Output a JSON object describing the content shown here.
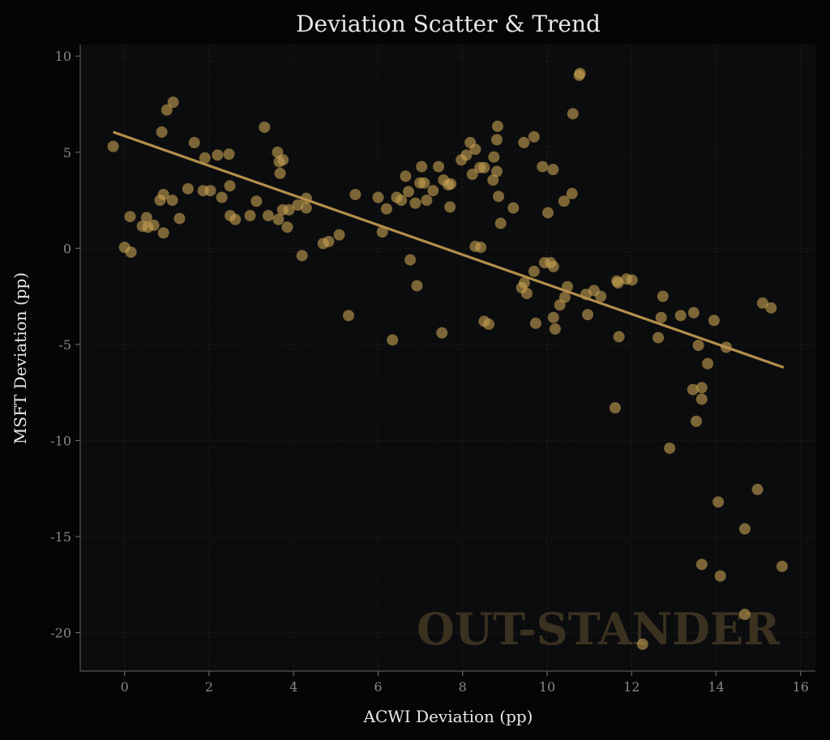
{
  "chart_data": {
    "type": "scatter",
    "title": "Deviation Scatter & Trend",
    "xlabel": "ACWI Deviation (pp)",
    "ylabel": "MSFT Deviation (pp)",
    "xlim": [
      -1.05,
      16.35
    ],
    "ylim": [
      -22.0,
      10.6
    ],
    "xticks": [
      0,
      2,
      4,
      6,
      8,
      10,
      12,
      14,
      16
    ],
    "yticks": [
      10,
      5,
      0,
      -5,
      -10,
      -15,
      -20
    ],
    "ytick_labels": [
      "10",
      "5",
      "0",
      "-5",
      "-10",
      "-15",
      "-20"
    ],
    "grid": true,
    "watermark": "OUT-STANDER",
    "colors": {
      "points": "#c8a152",
      "trend": "#b38f4c",
      "background": "#0b0c0e",
      "watermark": "#3b3120"
    },
    "trend": {
      "x": [
        -0.27,
        15.6
      ],
      "y": [
        6.05,
        -6.2
      ]
    },
    "points": [
      [
        -0.27,
        5.3
      ],
      [
        0,
        0.05
      ],
      [
        0.13,
        1.65
      ],
      [
        0.15,
        -0.2
      ],
      [
        0.42,
        1.15
      ],
      [
        0.52,
        1.6
      ],
      [
        0.55,
        1.1
      ],
      [
        0.69,
        1.2
      ],
      [
        0.84,
        2.5
      ],
      [
        0.88,
        6.05
      ],
      [
        0.92,
        2.8
      ],
      [
        0.92,
        0.8
      ],
      [
        1.0,
        7.2
      ],
      [
        1.13,
        2.5
      ],
      [
        1.15,
        7.6
      ],
      [
        1.3,
        1.55
      ],
      [
        1.5,
        3.1
      ],
      [
        1.65,
        5.5
      ],
      [
        1.86,
        3.0
      ],
      [
        1.9,
        4.7
      ],
      [
        2.03,
        3.0
      ],
      [
        2.2,
        4.85
      ],
      [
        2.3,
        2.65
      ],
      [
        2.47,
        4.9
      ],
      [
        2.49,
        3.25
      ],
      [
        2.5,
        1.7
      ],
      [
        2.62,
        1.5
      ],
      [
        2.97,
        1.7
      ],
      [
        3.12,
        2.45
      ],
      [
        3.31,
        6.3
      ],
      [
        3.4,
        1.7
      ],
      [
        3.62,
        5.0
      ],
      [
        3.64,
        1.5
      ],
      [
        3.66,
        4.5
      ],
      [
        3.68,
        3.9
      ],
      [
        3.75,
        4.6
      ],
      [
        3.74,
        2.0
      ],
      [
        3.85,
        1.1
      ],
      [
        3.89,
        2.0
      ],
      [
        4.1,
        2.25
      ],
      [
        4.2,
        -0.38
      ],
      [
        4.3,
        2.6
      ],
      [
        4.3,
        2.1
      ],
      [
        4.7,
        0.25
      ],
      [
        4.83,
        0.35
      ],
      [
        5.08,
        0.7
      ],
      [
        5.3,
        -3.5
      ],
      [
        5.46,
        2.8
      ],
      [
        6.0,
        2.65
      ],
      [
        6.1,
        0.85
      ],
      [
        6.2,
        2.05
      ],
      [
        6.34,
        -4.77
      ],
      [
        6.44,
        2.65
      ],
      [
        6.55,
        2.5
      ],
      [
        6.65,
        3.75
      ],
      [
        6.72,
        2.95
      ],
      [
        6.76,
        -0.6
      ],
      [
        6.88,
        2.35
      ],
      [
        6.92,
        -1.95
      ],
      [
        6.99,
        3.4
      ],
      [
        7.03,
        4.25
      ],
      [
        7.09,
        3.4
      ],
      [
        7.15,
        2.5
      ],
      [
        7.3,
        3.0
      ],
      [
        7.43,
        4.25
      ],
      [
        7.51,
        -4.4
      ],
      [
        7.55,
        3.55
      ],
      [
        7.66,
        3.3
      ],
      [
        7.7,
        2.15
      ],
      [
        7.72,
        3.35
      ],
      [
        7.97,
        4.6
      ],
      [
        8.09,
        4.85
      ],
      [
        8.18,
        5.5
      ],
      [
        8.23,
        3.85
      ],
      [
        8.3,
        5.15
      ],
      [
        8.3,
        0.1
      ],
      [
        8.41,
        4.2
      ],
      [
        8.43,
        0.05
      ],
      [
        8.51,
        4.2
      ],
      [
        8.51,
        -3.8
      ],
      [
        8.62,
        -3.95
      ],
      [
        8.72,
        3.55
      ],
      [
        8.74,
        4.75
      ],
      [
        8.81,
        5.65
      ],
      [
        8.81,
        4.0
      ],
      [
        8.83,
        6.35
      ],
      [
        8.85,
        2.7
      ],
      [
        8.9,
        1.3
      ],
      [
        9.2,
        2.1
      ],
      [
        9.4,
        -2.05
      ],
      [
        9.45,
        5.5
      ],
      [
        9.46,
        -1.8
      ],
      [
        9.52,
        -2.35
      ],
      [
        9.69,
        5.8
      ],
      [
        9.69,
        -1.2
      ],
      [
        9.73,
        -3.9
      ],
      [
        9.89,
        4.25
      ],
      [
        9.94,
        -0.75
      ],
      [
        10.02,
        1.85
      ],
      [
        10.08,
        -0.75
      ],
      [
        10.14,
        4.1
      ],
      [
        10.15,
        -0.95
      ],
      [
        10.15,
        -3.6
      ],
      [
        10.19,
        -4.2
      ],
      [
        10.3,
        -2.95
      ],
      [
        10.4,
        2.45
      ],
      [
        10.42,
        -2.55
      ],
      [
        10.48,
        -2.0
      ],
      [
        10.59,
        2.85
      ],
      [
        10.61,
        7.0
      ],
      [
        10.76,
        9.0
      ],
      [
        10.78,
        9.1
      ],
      [
        10.92,
        -2.4
      ],
      [
        10.96,
        -3.45
      ],
      [
        11.11,
        -2.2
      ],
      [
        11.27,
        -2.5
      ],
      [
        11.61,
        -8.3
      ],
      [
        11.65,
        -1.7
      ],
      [
        11.68,
        -1.8
      ],
      [
        11.7,
        -4.6
      ],
      [
        11.88,
        -1.6
      ],
      [
        12.01,
        -1.65
      ],
      [
        12.26,
        -20.6
      ],
      [
        12.63,
        -4.65
      ],
      [
        12.7,
        -3.6
      ],
      [
        12.74,
        -2.5
      ],
      [
        12.9,
        -10.4
      ],
      [
        13.16,
        -3.5
      ],
      [
        13.47,
        -3.35
      ],
      [
        13.45,
        -7.35
      ],
      [
        13.53,
        -9.0
      ],
      [
        13.58,
        -5.05
      ],
      [
        13.66,
        -7.25
      ],
      [
        13.66,
        -7.85
      ],
      [
        13.66,
        -16.45
      ],
      [
        13.8,
        -6.0
      ],
      [
        13.95,
        -3.75
      ],
      [
        14.05,
        -13.2
      ],
      [
        14.1,
        -17.05
      ],
      [
        14.24,
        -5.15
      ],
      [
        14.68,
        -14.6
      ],
      [
        14.68,
        -19.05
      ],
      [
        14.98,
        -12.55
      ],
      [
        15.1,
        -2.85
      ],
      [
        15.3,
        -3.1
      ],
      [
        15.56,
        -16.55
      ]
    ]
  }
}
